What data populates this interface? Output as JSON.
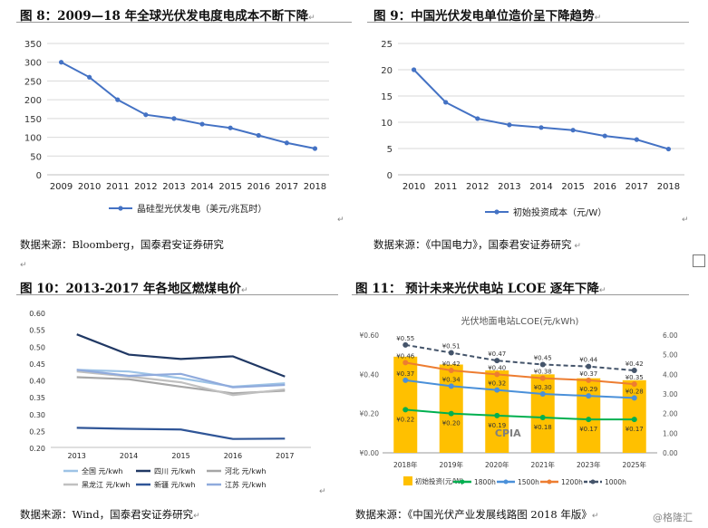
{
  "fig8": {
    "title": "图 8：2009—18 年全球光伏发电度电成本不断下降",
    "source": "数据来源：Bloomberg，国泰君安证券研究"
  },
  "fig9": {
    "title": "图 9：中国光伏发电单位造价呈下降趋势",
    "source": "数据来源：《中国电力》，国泰君安证券研究"
  },
  "fig10": {
    "title": "图 10：2013-2017 年各地区燃煤电价",
    "source": "数据来源：Wind，国泰君安证券研究"
  },
  "fig11": {
    "title": "图 11： 预计未来光伏电站 LCOE 逐年下降",
    "source": "数据来源：《中国光伏产业发展线路图 2018 年版》"
  },
  "watermark": "@格隆汇",
  "chart_data": [
    {
      "id": "fig8",
      "type": "line",
      "x": [
        "2009",
        "2010",
        "2011",
        "2012",
        "2013",
        "2014",
        "2015",
        "2016",
        "2017",
        "2018"
      ],
      "series": [
        {
          "name": "晶硅型光伏发电（美元/兆瓦时）",
          "color": "#4472c4",
          "values": [
            300,
            260,
            200,
            160,
            150,
            135,
            125,
            105,
            85,
            70
          ]
        }
      ],
      "ylim": [
        0,
        350
      ],
      "yticks": [
        0,
        50,
        100,
        150,
        200,
        250,
        300,
        350
      ],
      "grid": true,
      "legend": "bottom"
    },
    {
      "id": "fig9",
      "type": "line",
      "x": [
        "2010",
        "2011",
        "2012",
        "2013",
        "2014",
        "2015",
        "2016",
        "2017",
        "2018"
      ],
      "series": [
        {
          "name": "初始投资成本（元/W）",
          "color": "#4472c4",
          "values": [
            20,
            13.8,
            10.7,
            9.5,
            9,
            8.5,
            7.4,
            6.7,
            4.9
          ]
        }
      ],
      "ylim": [
        0,
        25
      ],
      "yticks": [
        0,
        5,
        10,
        15,
        20,
        25
      ],
      "grid": true,
      "legend": "bottom"
    },
    {
      "id": "fig10",
      "type": "line",
      "x": [
        "2013",
        "2014",
        "2015",
        "2016",
        "2017"
      ],
      "series": [
        {
          "name": "全国 元/kwh",
          "color": "#9dc3e6",
          "values": [
            0.43,
            0.425,
            0.405,
            0.38,
            0.39
          ]
        },
        {
          "name": "四川 元/kwh",
          "color": "#203864",
          "values": [
            0.535,
            0.475,
            0.462,
            0.47,
            0.41
          ]
        },
        {
          "name": "河北 元/kwh",
          "color": "#a6a6a6",
          "values": [
            0.408,
            0.402,
            0.38,
            0.36,
            0.368
          ]
        },
        {
          "name": "黑龙江 元/kwh",
          "color": "#c0c0c0",
          "values": [
            0.425,
            0.41,
            0.393,
            0.355,
            0.372
          ]
        },
        {
          "name": "新疆 元/kwh",
          "color": "#2f5597",
          "values": [
            0.258,
            0.255,
            0.253,
            0.225,
            0.226
          ]
        },
        {
          "name": "江苏 元/kwh",
          "color": "#8faadc",
          "values": [
            0.43,
            0.412,
            0.418,
            0.378,
            0.385
          ]
        }
      ],
      "ylim": [
        0.2,
        0.6
      ],
      "yticks": [
        "0.20",
        "0.25",
        "0.30",
        "0.35",
        "0.40",
        "0.45",
        "0.50",
        "0.55",
        "0.60"
      ],
      "grid": false,
      "legend": "bottom"
    },
    {
      "id": "fig11",
      "type": "bar",
      "title": "光伏地面电站LCOE(元/kWh)",
      "categories": [
        "2018年",
        "2019年",
        "2020年",
        "2021年",
        "2023年",
        "2025年"
      ],
      "bars": {
        "name": "初始投资(元/W)",
        "color": "#ffc000",
        "values": [
          4.9,
          4.5,
          4.2,
          4.0,
          3.8,
          3.7
        ],
        "axis": "right"
      },
      "series": [
        {
          "name": "1800h",
          "color": "#00b050",
          "dash": false,
          "values": [
            0.22,
            0.2,
            0.19,
            0.18,
            0.17,
            0.17
          ],
          "labels": [
            "¥0.22",
            "¥0.20",
            "¥0.19",
            "¥0.18",
            "¥0.17",
            "¥0.17"
          ]
        },
        {
          "name": "1500h",
          "color": "#4a90d9",
          "dash": false,
          "values": [
            0.37,
            0.34,
            0.32,
            0.3,
            0.29,
            0.28
          ],
          "labels": [
            "¥0.37",
            "¥0.34",
            "¥0.32",
            "¥0.30",
            "¥0.29",
            "¥0.28"
          ]
        },
        {
          "name": "1200h",
          "color": "#ed7d31",
          "dash": false,
          "values": [
            0.46,
            0.42,
            0.4,
            0.38,
            0.37,
            0.35
          ],
          "labels": [
            "¥0.46",
            "¥0.42",
            "¥0.40",
            "¥0.38",
            "¥0.37",
            "¥0.35"
          ]
        },
        {
          "name": "1000h",
          "color": "#44546a",
          "dash": true,
          "values": [
            0.55,
            0.51,
            0.47,
            0.45,
            0.44,
            0.42
          ],
          "labels": [
            "¥0.55",
            "¥0.51",
            "¥0.47",
            "¥0.45",
            "¥0.44",
            "¥0.42"
          ]
        }
      ],
      "ylim_left": [
        0,
        0.6
      ],
      "yticks_left": [
        "¥0.00",
        "¥0.20",
        "¥0.40",
        "¥0.60"
      ],
      "ylim_right": [
        0,
        6
      ],
      "yticks_right": [
        "0.00",
        "1.00",
        "2.00",
        "3.00",
        "4.00",
        "5.00",
        "6.00"
      ],
      "annotation": "CPIA",
      "legend": "bottom"
    }
  ]
}
